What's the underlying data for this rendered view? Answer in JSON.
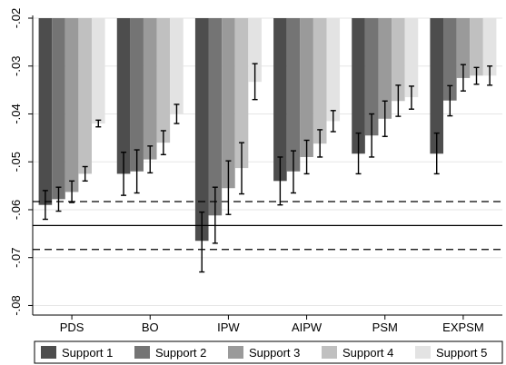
{
  "chart_data": {
    "type": "bar",
    "categories": [
      "PDS",
      "BO",
      "IPW",
      "AIPW",
      "PSM",
      "EXPSM"
    ],
    "series": [
      {
        "name": "Support 1",
        "color": "#4d4d4d",
        "values": [
          -0.059,
          -0.0525,
          -0.0665,
          -0.054,
          -0.0483,
          -0.0483
        ],
        "ci_low": [
          -0.062,
          -0.057,
          -0.073,
          -0.059,
          -0.0525,
          -0.0525
        ],
        "ci_high": [
          -0.056,
          -0.048,
          -0.0605,
          -0.049,
          -0.044,
          -0.044
        ]
      },
      {
        "name": "Support 2",
        "color": "#747474",
        "values": [
          -0.0578,
          -0.052,
          -0.0612,
          -0.052,
          -0.0445,
          -0.0372
        ],
        "ci_low": [
          -0.0603,
          -0.0565,
          -0.067,
          -0.0565,
          -0.049,
          -0.0404
        ],
        "ci_high": [
          -0.0553,
          -0.0475,
          -0.0553,
          -0.0477,
          -0.04,
          -0.0341
        ]
      },
      {
        "name": "Support 3",
        "color": "#9a9a9a",
        "values": [
          -0.0563,
          -0.0495,
          -0.0555,
          -0.049,
          -0.041,
          -0.0325
        ],
        "ci_low": [
          -0.0585,
          -0.0523,
          -0.061,
          -0.0525,
          -0.0447,
          -0.0352
        ],
        "ci_high": [
          -0.054,
          -0.0467,
          -0.0498,
          -0.0455,
          -0.0373,
          -0.0297
        ]
      },
      {
        "name": "Support 4",
        "color": "#c0c0c0",
        "values": [
          -0.0525,
          -0.046,
          -0.0513,
          -0.0462,
          -0.0373,
          -0.032
        ],
        "ci_low": [
          -0.054,
          -0.0485,
          -0.0567,
          -0.049,
          -0.0405,
          -0.0338
        ],
        "ci_high": [
          -0.051,
          -0.0435,
          -0.046,
          -0.0433,
          -0.034,
          -0.0303
        ]
      },
      {
        "name": "Support 5",
        "color": "#e3e3e3",
        "values": [
          -0.042,
          -0.04,
          -0.0333,
          -0.0415,
          -0.0365,
          -0.032
        ],
        "ci_low": [
          -0.0427,
          -0.042,
          -0.037,
          -0.0437,
          -0.039,
          -0.034
        ],
        "ci_high": [
          -0.0413,
          -0.038,
          -0.0295,
          -0.0393,
          -0.0342,
          -0.03
        ]
      }
    ],
    "reference_lines": [
      {
        "value": -0.0633,
        "style": "solid"
      },
      {
        "value": -0.0583,
        "style": "dashed"
      },
      {
        "value": -0.0683,
        "style": "dashed"
      }
    ],
    "y_ticks": [
      -0.02,
      -0.03,
      -0.04,
      -0.05,
      -0.06,
      -0.07,
      -0.08
    ],
    "y_tick_labels": [
      "-.02",
      "-.03",
      "-.04",
      "-.05",
      "-.06",
      "-.07",
      "-.08"
    ],
    "ylim": [
      -0.082,
      -0.02
    ],
    "bar_base": -0.02,
    "grid": true,
    "legend_position": "bottom",
    "title": "",
    "xlabel": "",
    "ylabel": ""
  }
}
